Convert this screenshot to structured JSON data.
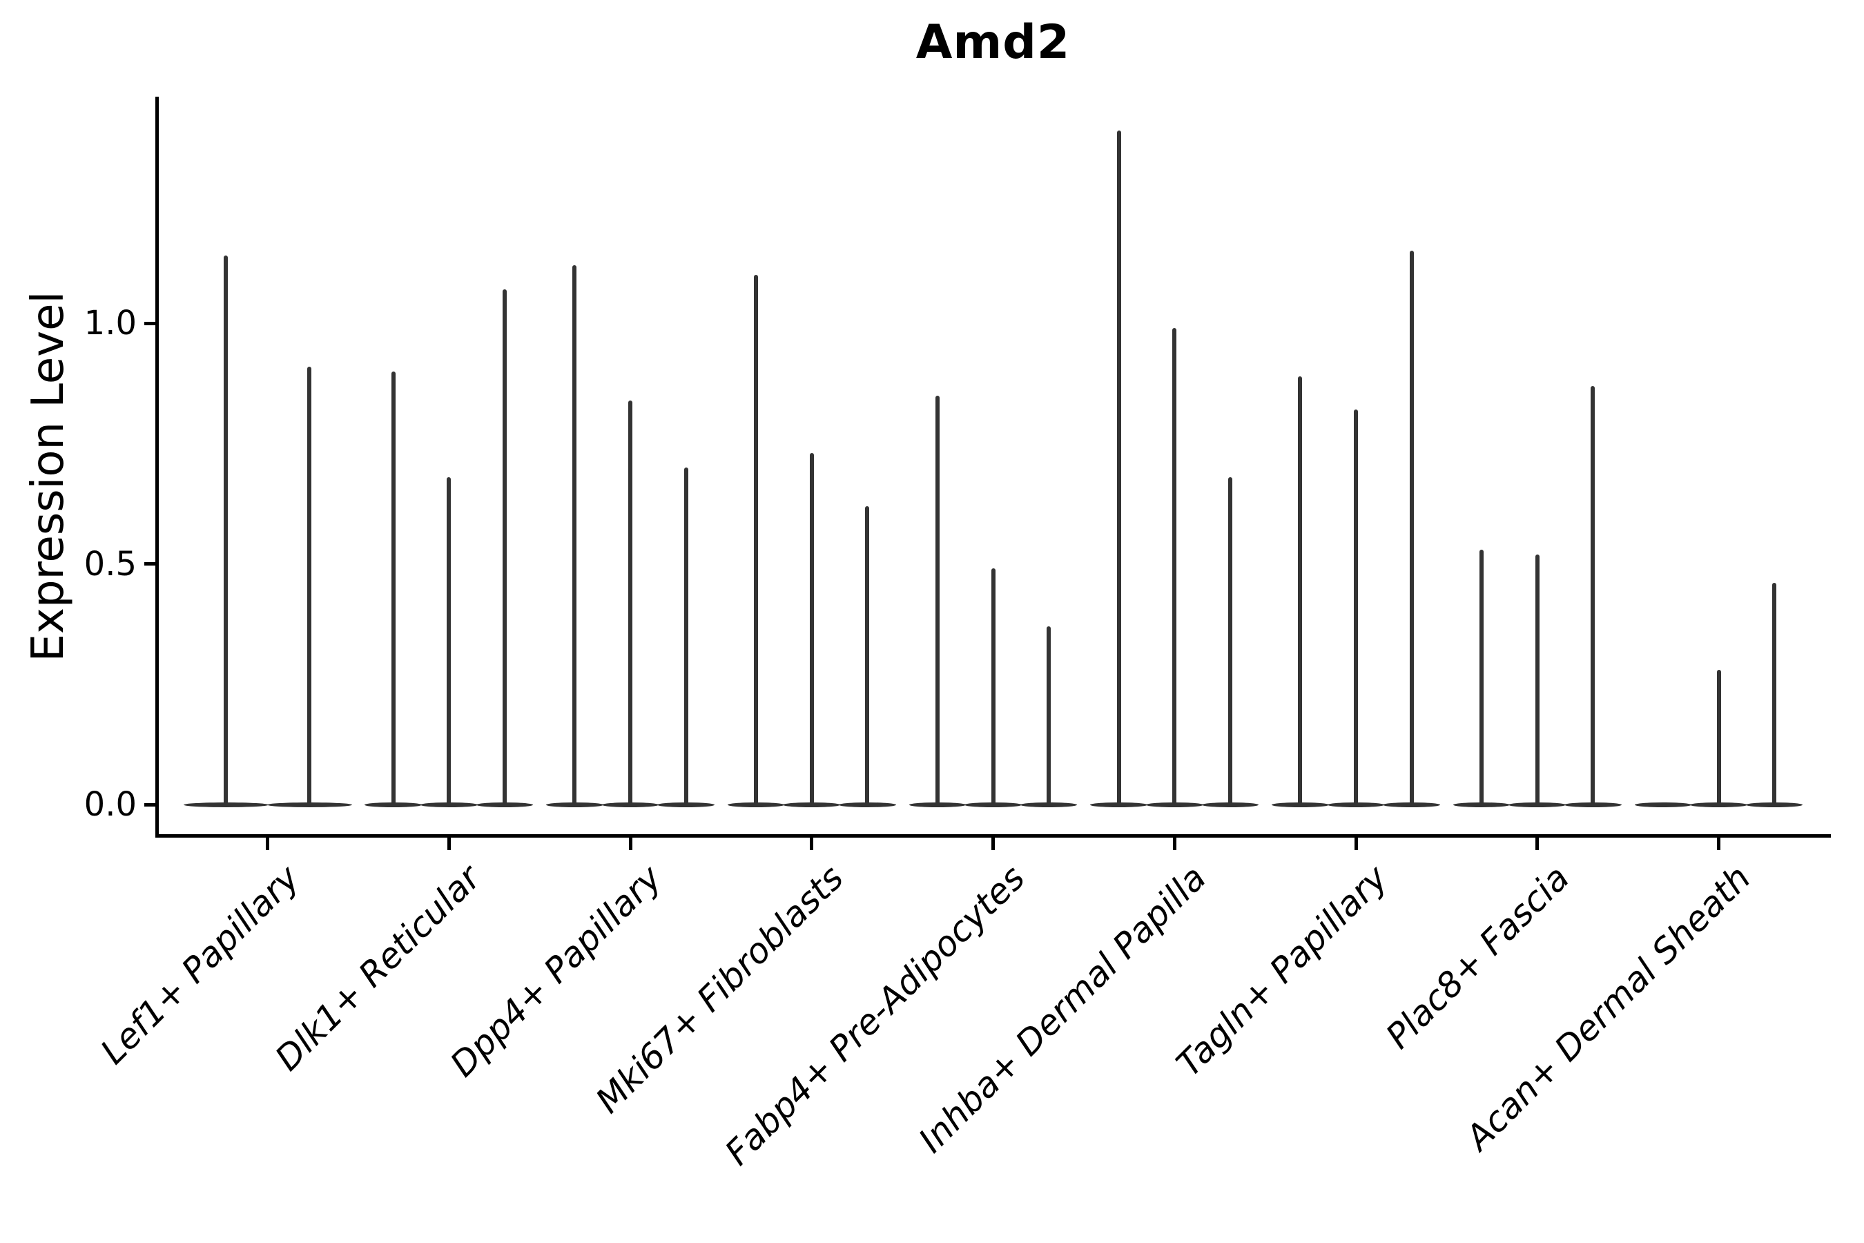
{
  "title": "Amd2",
  "chart_data": {
    "type": "violin",
    "title": "Amd2",
    "xlabel": "",
    "ylabel": "Expression Level",
    "grid": false,
    "legend": "none",
    "ylim": [
      -0.07,
      1.47
    ],
    "yticks": [
      {
        "label": "0.0",
        "value": 0.0
      },
      {
        "label": "0.5",
        "value": 0.5
      },
      {
        "label": "1.0",
        "value": 1.0
      }
    ],
    "categories": [
      "Lef1+ Papillary",
      "Dlk1+ Reticular",
      "Dpp4+ Papillary",
      "Mki67+ Fibroblasts",
      "Fabp4+ Pre-Adipocytes",
      "Inhba+ Dermal Papilla",
      "Tagln+ Papillary",
      "Plac8+ Fascia",
      "Acan+ Dermal Sheath"
    ],
    "groups": [
      {
        "category": "Lef1+ Papillary",
        "violin_max_values": [
          1.14,
          0.91
        ]
      },
      {
        "category": "Dlk1+ Reticular",
        "violin_max_values": [
          0.9,
          0.68,
          1.07
        ]
      },
      {
        "category": "Dpp4+ Papillary",
        "violin_max_values": [
          1.12,
          0.84,
          0.7
        ]
      },
      {
        "category": "Mki67+ Fibroblasts",
        "violin_max_values": [
          1.1,
          0.73,
          0.62
        ]
      },
      {
        "category": "Fabp4+ Pre-Adipocytes",
        "violin_max_values": [
          0.85,
          0.49,
          0.37
        ]
      },
      {
        "category": "Inhba+ Dermal Papilla",
        "violin_max_values": [
          1.4,
          0.99,
          0.68
        ]
      },
      {
        "category": "Tagln+ Papillary",
        "violin_max_values": [
          0.89,
          0.82,
          1.15
        ]
      },
      {
        "category": "Plac8+ Fascia",
        "violin_max_values": [
          0.53,
          0.52,
          0.87
        ]
      },
      {
        "category": "Acan+ Dermal Sheath",
        "violin_max_values": [
          0.0,
          0.28,
          0.46
        ]
      }
    ],
    "colors": {
      "violin": "#333333",
      "axis": "#000000",
      "text": "#000000",
      "background": "#ffffff"
    }
  }
}
